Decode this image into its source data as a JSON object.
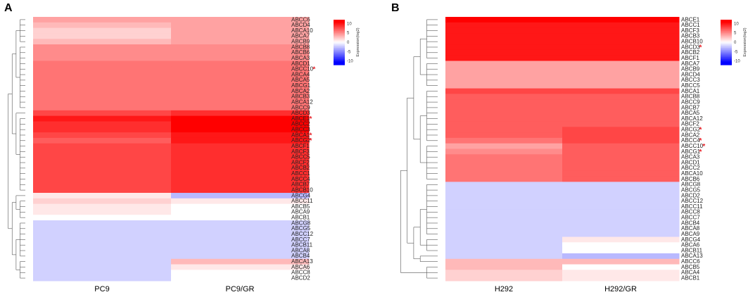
{
  "chart_data": [
    {
      "type": "heatmap",
      "panel": "A",
      "columns": [
        "PC9",
        "PC9/GR"
      ],
      "legend": {
        "title": "Expression(log2)",
        "ticks": [
          10,
          5,
          0,
          -5,
          -10
        ]
      },
      "rows": [
        {
          "name": "ABCC6",
          "values": [
            4,
            4
          ],
          "sig": false
        },
        {
          "name": "ABCD4",
          "values": [
            3,
            4
          ],
          "sig": false
        },
        {
          "name": "ABCA10",
          "values": [
            2,
            4
          ],
          "sig": false
        },
        {
          "name": "ABCA7",
          "values": [
            2,
            4
          ],
          "sig": false
        },
        {
          "name": "ABCB9",
          "values": [
            3,
            4
          ],
          "sig": false
        },
        {
          "name": "ABCB8",
          "values": [
            5,
            5
          ],
          "sig": false
        },
        {
          "name": "ABCB6",
          "values": [
            5,
            5
          ],
          "sig": false
        },
        {
          "name": "ABCA3",
          "values": [
            5,
            5
          ],
          "sig": false
        },
        {
          "name": "ABCD1",
          "values": [
            6,
            6
          ],
          "sig": false
        },
        {
          "name": "ABCC10",
          "values": [
            6,
            6
          ],
          "sig": true
        },
        {
          "name": "ABCA4",
          "values": [
            6,
            6
          ],
          "sig": false
        },
        {
          "name": "ABCA5",
          "values": [
            6,
            6
          ],
          "sig": false
        },
        {
          "name": "ABCG1",
          "values": [
            6,
            6
          ],
          "sig": false
        },
        {
          "name": "ABCA2",
          "values": [
            6,
            6
          ],
          "sig": false
        },
        {
          "name": "ABCB3",
          "values": [
            6,
            6
          ],
          "sig": false
        },
        {
          "name": "ABCA12",
          "values": [
            6,
            6
          ],
          "sig": false
        },
        {
          "name": "ABCC9",
          "values": [
            6,
            6
          ],
          "sig": false
        },
        {
          "name": "ABCD3",
          "values": [
            8,
            9
          ],
          "sig": false
        },
        {
          "name": "ABCE1",
          "values": [
            10,
            11
          ],
          "sig": true
        },
        {
          "name": "ABCC2",
          "values": [
            9,
            11
          ],
          "sig": false
        },
        {
          "name": "ABCC3",
          "values": [
            9,
            11
          ],
          "sig": false
        },
        {
          "name": "ABCA1",
          "values": [
            8,
            10
          ],
          "sig": true
        },
        {
          "name": "ABCG2",
          "values": [
            7,
            10
          ],
          "sig": true
        },
        {
          "name": "ABCF1",
          "values": [
            8,
            9
          ],
          "sig": false
        },
        {
          "name": "ABCF3",
          "values": [
            8,
            9
          ],
          "sig": false
        },
        {
          "name": "ABCC5",
          "values": [
            8,
            9
          ],
          "sig": false
        },
        {
          "name": "ABCF2",
          "values": [
            8,
            9
          ],
          "sig": false
        },
        {
          "name": "ABCB2",
          "values": [
            8,
            9
          ],
          "sig": false
        },
        {
          "name": "ABCC1",
          "values": [
            8,
            9
          ],
          "sig": false
        },
        {
          "name": "ABCC4",
          "values": [
            8,
            9
          ],
          "sig": false
        },
        {
          "name": "ABCB7",
          "values": [
            8,
            9
          ],
          "sig": false
        },
        {
          "name": "ABCB10",
          "values": [
            8,
            9
          ],
          "sig": false
        },
        {
          "name": "ABCG4",
          "values": [
            1,
            -3
          ],
          "sig": false
        },
        {
          "name": "ABCC11",
          "values": [
            2,
            1
          ],
          "sig": false
        },
        {
          "name": "ABCB5",
          "values": [
            1,
            0
          ],
          "sig": false
        },
        {
          "name": "ABCA9",
          "values": [
            1,
            0
          ],
          "sig": false
        },
        {
          "name": "ABCB1",
          "values": [
            0,
            0
          ],
          "sig": false
        },
        {
          "name": "ABCG8",
          "values": [
            -2,
            -2
          ],
          "sig": false
        },
        {
          "name": "ABCG5",
          "values": [
            -2,
            -2
          ],
          "sig": false
        },
        {
          "name": "ABCC12",
          "values": [
            -2,
            -2
          ],
          "sig": false
        },
        {
          "name": "ABCC7",
          "values": [
            -2,
            -2
          ],
          "sig": false
        },
        {
          "name": "ABCB11",
          "values": [
            -2,
            -2
          ],
          "sig": false
        },
        {
          "name": "ABCA8",
          "values": [
            -2,
            -2
          ],
          "sig": false
        },
        {
          "name": "ABCB4",
          "values": [
            -2,
            -2
          ],
          "sig": false
        },
        {
          "name": "ABCA13",
          "values": [
            -2,
            3
          ],
          "sig": false
        },
        {
          "name": "ABCA6",
          "values": [
            -2,
            1
          ],
          "sig": false
        },
        {
          "name": "ABCC8",
          "values": [
            -2,
            0
          ],
          "sig": false
        },
        {
          "name": "ABCD2",
          "values": [
            -2,
            0
          ],
          "sig": false
        }
      ]
    },
    {
      "type": "heatmap",
      "panel": "B",
      "columns": [
        "H292",
        "H292/GR"
      ],
      "legend": {
        "title": "Expression(log2)",
        "ticks": [
          10,
          5,
          0,
          -5,
          -10
        ]
      },
      "rows": [
        {
          "name": "ABCE1",
          "values": [
            11,
            11
          ],
          "sig": false
        },
        {
          "name": "ABCC1",
          "values": [
            10,
            10
          ],
          "sig": false
        },
        {
          "name": "ABCF3",
          "values": [
            10,
            10
          ],
          "sig": false
        },
        {
          "name": "ABCB3",
          "values": [
            10,
            10
          ],
          "sig": false
        },
        {
          "name": "ABCB10",
          "values": [
            10,
            10
          ],
          "sig": false
        },
        {
          "name": "ABCD3",
          "values": [
            10,
            10
          ],
          "sig": true
        },
        {
          "name": "ABCB2",
          "values": [
            10,
            10
          ],
          "sig": false
        },
        {
          "name": "ABCF1",
          "values": [
            10,
            10
          ],
          "sig": false
        },
        {
          "name": "ABCA7",
          "values": [
            4,
            4
          ],
          "sig": false
        },
        {
          "name": "ABCB9",
          "values": [
            4,
            4
          ],
          "sig": false
        },
        {
          "name": "ABCD4",
          "values": [
            4,
            4
          ],
          "sig": false
        },
        {
          "name": "ABCC3",
          "values": [
            4,
            4
          ],
          "sig": false
        },
        {
          "name": "ABCC5",
          "values": [
            4,
            4
          ],
          "sig": false
        },
        {
          "name": "ABCA1",
          "values": [
            8,
            8
          ],
          "sig": false
        },
        {
          "name": "ABCB8",
          "values": [
            7,
            7
          ],
          "sig": false
        },
        {
          "name": "ABCC9",
          "values": [
            7,
            7
          ],
          "sig": false
        },
        {
          "name": "ABCB7",
          "values": [
            7,
            7
          ],
          "sig": false
        },
        {
          "name": "ABCA5",
          "values": [
            7,
            7
          ],
          "sig": false
        },
        {
          "name": "ABCA12",
          "values": [
            7,
            7
          ],
          "sig": false
        },
        {
          "name": "ABCF2",
          "values": [
            7,
            7
          ],
          "sig": false
        },
        {
          "name": "ABCG2",
          "values": [
            7,
            8
          ],
          "sig": true
        },
        {
          "name": "ABCA2",
          "values": [
            7,
            8
          ],
          "sig": false
        },
        {
          "name": "ABCC4",
          "values": [
            6,
            8
          ],
          "sig": true
        },
        {
          "name": "ABCC10",
          "values": [
            4,
            7
          ],
          "sig": true
        },
        {
          "name": "ABCG1",
          "values": [
            5,
            7
          ],
          "sig": true
        },
        {
          "name": "ABCA3",
          "values": [
            6,
            7
          ],
          "sig": false
        },
        {
          "name": "ABCD1",
          "values": [
            6,
            7
          ],
          "sig": false
        },
        {
          "name": "ABCC2",
          "values": [
            6,
            7
          ],
          "sig": false
        },
        {
          "name": "ABCA10",
          "values": [
            6,
            7
          ],
          "sig": false
        },
        {
          "name": "ABCB6",
          "values": [
            6,
            7
          ],
          "sig": false
        },
        {
          "name": "ABCG8",
          "values": [
            -2,
            -2
          ],
          "sig": false
        },
        {
          "name": "ABCG5",
          "values": [
            -2,
            -2
          ],
          "sig": false
        },
        {
          "name": "ABCD2",
          "values": [
            -2,
            -2
          ],
          "sig": false
        },
        {
          "name": "ABCC12",
          "values": [
            -2,
            -2
          ],
          "sig": false
        },
        {
          "name": "ABCC11",
          "values": [
            -2,
            -2
          ],
          "sig": false
        },
        {
          "name": "ABCC8",
          "values": [
            -2,
            -2
          ],
          "sig": false
        },
        {
          "name": "ABCC7",
          "values": [
            -2,
            -2
          ],
          "sig": false
        },
        {
          "name": "ABCB4",
          "values": [
            -2,
            -2
          ],
          "sig": false
        },
        {
          "name": "ABCA8",
          "values": [
            -2,
            -2
          ],
          "sig": false
        },
        {
          "name": "ABCA9",
          "values": [
            -2,
            -2
          ],
          "sig": false
        },
        {
          "name": "ABCG4",
          "values": [
            -2,
            1
          ],
          "sig": false
        },
        {
          "name": "ABCA6",
          "values": [
            -2,
            0
          ],
          "sig": false
        },
        {
          "name": "ABCB11",
          "values": [
            -2,
            0
          ],
          "sig": false
        },
        {
          "name": "ABCA13",
          "values": [
            -2,
            -3
          ],
          "sig": false
        },
        {
          "name": "ABCC6",
          "values": [
            3,
            3
          ],
          "sig": false
        },
        {
          "name": "ABCB5",
          "values": [
            3,
            0
          ],
          "sig": false
        },
        {
          "name": "ABCA4",
          "values": [
            2,
            1
          ],
          "sig": false
        },
        {
          "name": "ABCB1",
          "values": [
            2,
            1
          ],
          "sig": false
        }
      ]
    }
  ]
}
